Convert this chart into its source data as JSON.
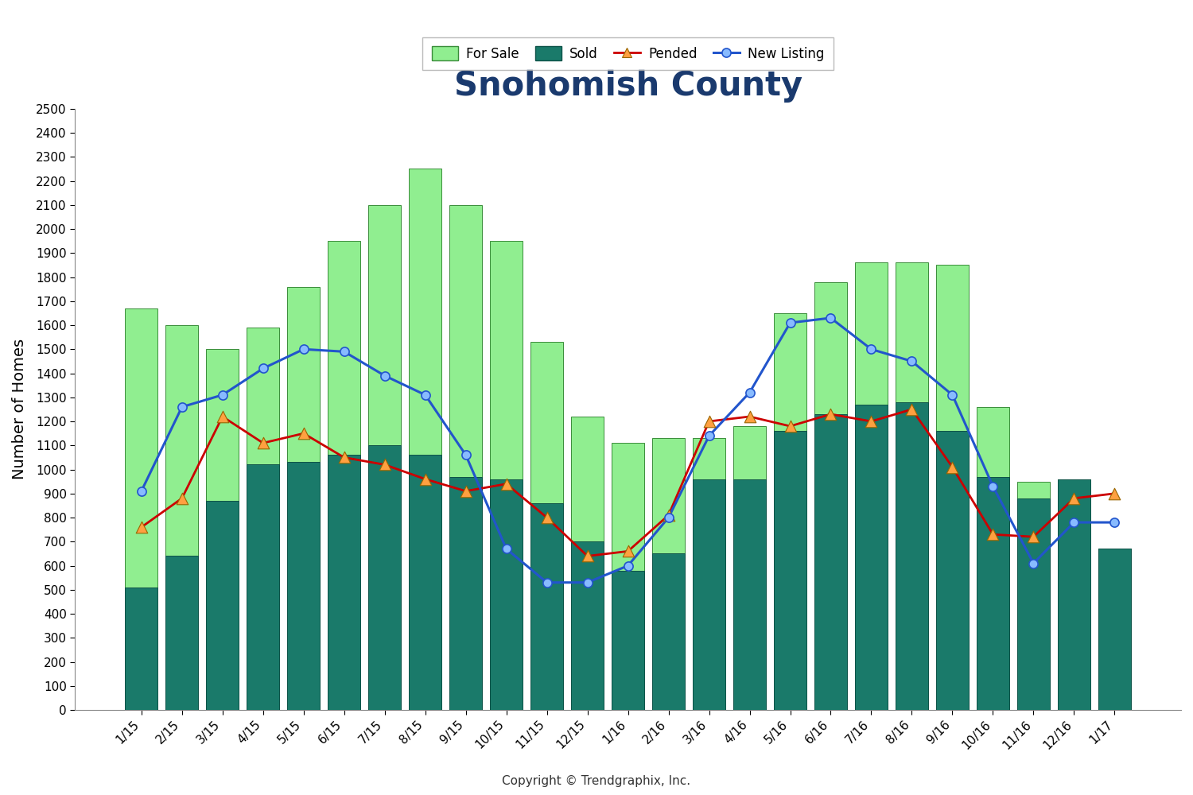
{
  "title": "Snohomish County",
  "xlabel": "",
  "ylabel": "Number of Homes",
  "copyright": "Copyright © Trendgraphix, Inc.",
  "ylim": [
    0,
    2500
  ],
  "yticks": [
    0,
    100,
    200,
    300,
    400,
    500,
    600,
    700,
    800,
    900,
    1000,
    1100,
    1200,
    1300,
    1400,
    1500,
    1600,
    1700,
    1800,
    1900,
    2000,
    2100,
    2200,
    2300,
    2400,
    2500
  ],
  "categories": [
    "1/15",
    "2/15",
    "3/15",
    "4/15",
    "5/15",
    "6/15",
    "7/15",
    "8/15",
    "9/15",
    "10/15",
    "11/15",
    "12/15",
    "1/16",
    "2/16",
    "3/16",
    "4/16",
    "5/16",
    "6/16",
    "7/16",
    "8/16",
    "9/16",
    "10/16",
    "11/16",
    "12/16",
    "1/17"
  ],
  "for_sale": [
    1670,
    1600,
    1500,
    1590,
    1760,
    1950,
    2100,
    2250,
    2100,
    1950,
    1530,
    1220,
    1110,
    1130,
    1130,
    1180,
    1650,
    1780,
    1860,
    1860,
    1850,
    1260,
    950,
    960,
    670
  ],
  "sold": [
    510,
    640,
    870,
    1020,
    1030,
    1060,
    1100,
    1060,
    970,
    960,
    860,
    700,
    580,
    650,
    960,
    960,
    1160,
    1230,
    1270,
    1280,
    1160,
    970,
    880,
    960,
    670
  ],
  "pended": [
    760,
    880,
    1220,
    1110,
    1150,
    1050,
    1020,
    960,
    910,
    940,
    800,
    640,
    660,
    810,
    1200,
    1220,
    1180,
    1230,
    1200,
    1250,
    1010,
    730,
    720,
    880,
    900
  ],
  "new_listing": [
    910,
    1260,
    1310,
    1420,
    1500,
    1490,
    1390,
    1310,
    1060,
    670,
    530,
    530,
    600,
    800,
    1140,
    1320,
    1610,
    1630,
    1500,
    1450,
    1310,
    930,
    610,
    780,
    780
  ],
  "for_sale_color": "#90EE90",
  "for_sale_edge_color": "#3a8c3a",
  "sold_color": "#1a7a6a",
  "sold_edge_color": "#0d5248",
  "pended_color": "#FFA040",
  "pended_line_color": "#CC0000",
  "new_listing_color": "#2255CC",
  "new_listing_marker_color": "#88BBFF",
  "title_color": "#1a3a6e",
  "title_fontsize": 30,
  "ylabel_fontsize": 14,
  "tick_fontsize": 11,
  "legend_fontsize": 12
}
